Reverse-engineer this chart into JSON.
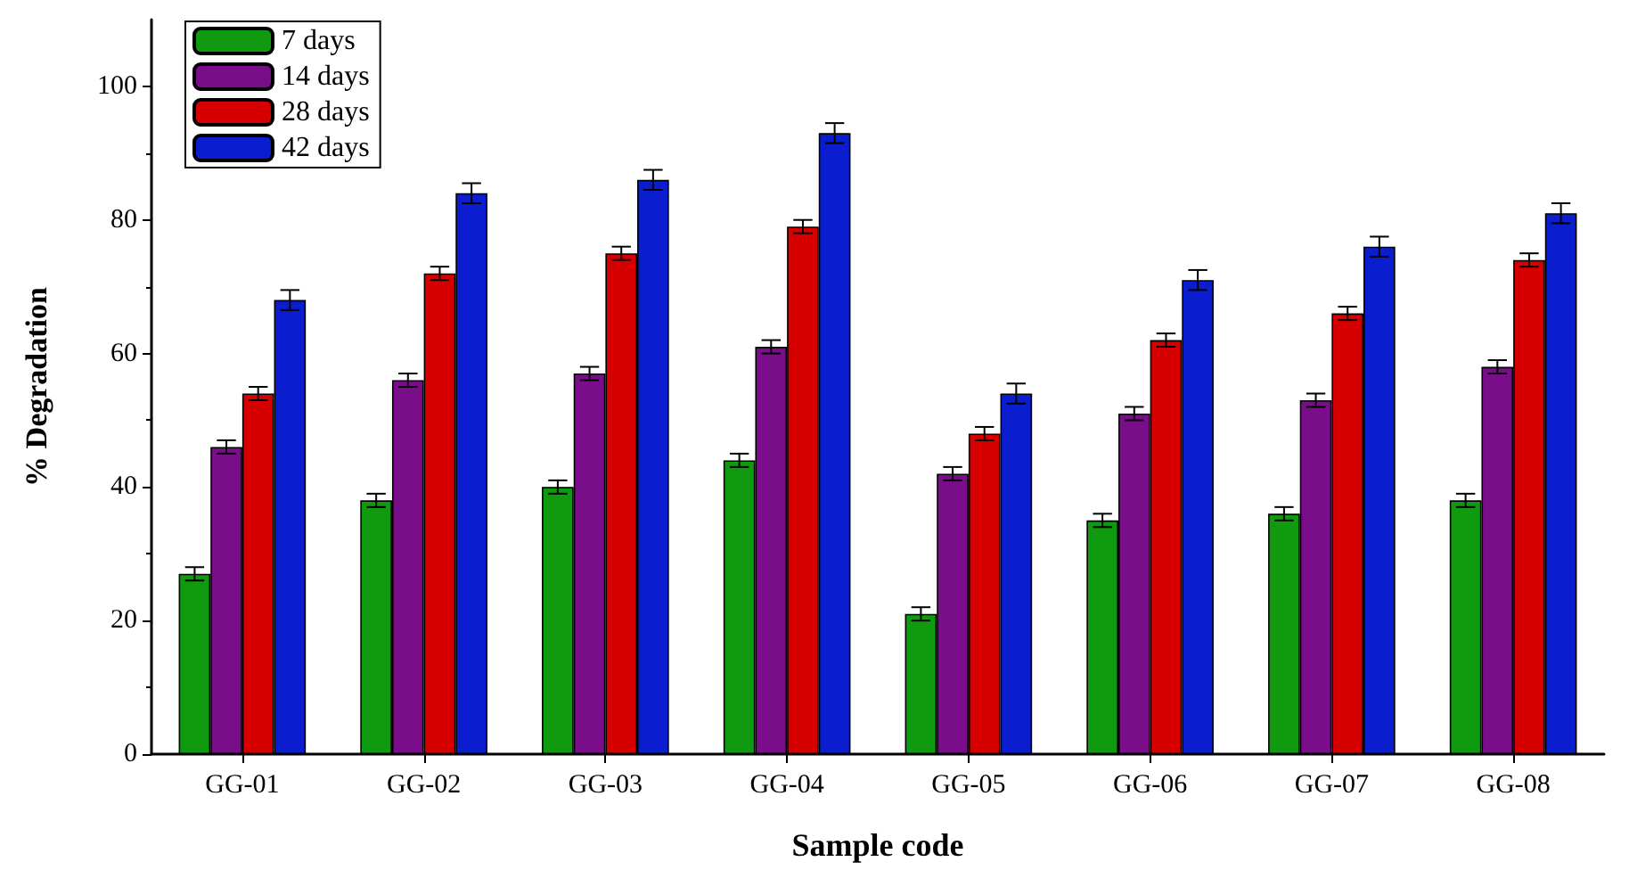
{
  "chart_data": {
    "type": "bar",
    "xlabel": "Sample code",
    "ylabel": "% Degradation",
    "categories": [
      "GG-01",
      "GG-02",
      "GG-03",
      "GG-04",
      "GG-05",
      "GG-06",
      "GG-07",
      "GG-08"
    ],
    "series": [
      {
        "name": "7 days",
        "color": "#109a10",
        "values": [
          27,
          38,
          40,
          44,
          21,
          35,
          36,
          38
        ],
        "errors": [
          1,
          1,
          1,
          1,
          1,
          1,
          1,
          1
        ]
      },
      {
        "name": "14 days",
        "color": "#7a0e8a",
        "values": [
          46,
          56,
          57,
          61,
          42,
          51,
          53,
          58
        ],
        "errors": [
          1,
          1,
          1,
          1,
          1,
          1,
          1,
          1
        ]
      },
      {
        "name": "28 days",
        "color": "#d60000",
        "values": [
          54,
          72,
          75,
          79,
          48,
          62,
          66,
          74
        ],
        "errors": [
          1,
          1,
          1,
          1,
          1,
          1,
          1,
          1
        ]
      },
      {
        "name": "42 days",
        "color": "#0a1ed0",
        "values": [
          68,
          84,
          86,
          93,
          54,
          71,
          76,
          81
        ],
        "errors": [
          1.5,
          1.5,
          1.5,
          1.5,
          1.5,
          1.5,
          1.5,
          1.5
        ]
      }
    ],
    "ylim": [
      0,
      110
    ],
    "yticks": [
      0,
      20,
      40,
      60,
      80,
      100
    ],
    "grid": false,
    "legend": "top left"
  }
}
